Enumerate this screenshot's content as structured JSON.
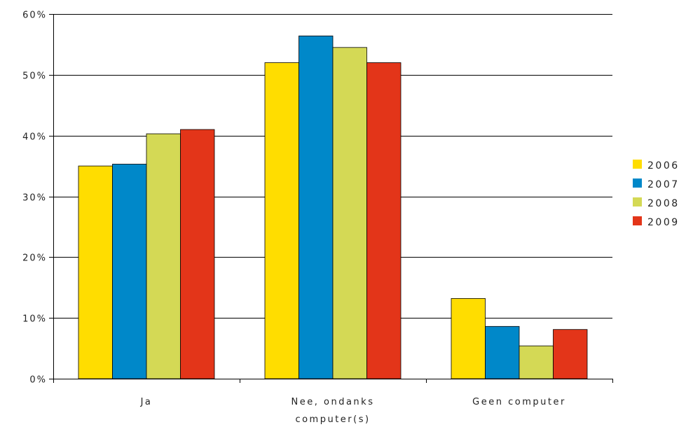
{
  "chart_data": {
    "type": "bar",
    "categories": [
      [
        "Ja"
      ],
      [
        "Nee, ondanks",
        "computer(s)"
      ],
      [
        "Geen computer"
      ]
    ],
    "series": [
      {
        "name": "2006",
        "color": "#FFDD00",
        "values": [
          35,
          52,
          13.2
        ]
      },
      {
        "name": "2007",
        "color": "#0088C9",
        "values": [
          35.3,
          56.4,
          8.6
        ]
      },
      {
        "name": "2008",
        "color": "#D4D955",
        "values": [
          40.3,
          54.5,
          5.4
        ]
      },
      {
        "name": "2009",
        "color": "#E33519",
        "values": [
          41,
          52,
          8.1
        ]
      }
    ],
    "yticks": [
      "0%",
      "10%",
      "20%",
      "30%",
      "40%",
      "50%",
      "60%"
    ],
    "ylim": [
      0,
      60
    ],
    "grid": true,
    "legend": "right"
  }
}
